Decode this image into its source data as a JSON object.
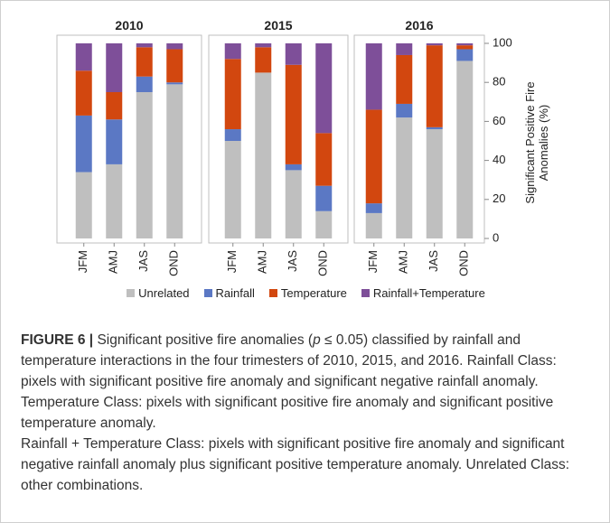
{
  "chart_data": {
    "type": "bar",
    "stacked": true,
    "ylabel": "Significant Positive Fire Anomalies (%)",
    "ylim": [
      0,
      100
    ],
    "yticks": [
      0,
      20,
      40,
      60,
      80,
      100
    ],
    "categories": [
      "JFM",
      "AMJ",
      "JAS",
      "OND"
    ],
    "legend": "bottom",
    "series": [
      {
        "name": "Unrelated",
        "color": "#bfbfbf"
      },
      {
        "name": "Rainfall",
        "color": "#5b78c4"
      },
      {
        "name": "Temperature",
        "color": "#d2470f"
      },
      {
        "name": "Rainfall+Temperature",
        "color": "#7e4f99"
      }
    ],
    "panels": [
      {
        "title": "2010",
        "series": [
          {
            "values": [
              34,
              38,
              75,
              79
            ]
          },
          {
            "values": [
              29,
              23,
              8,
              1
            ]
          },
          {
            "values": [
              23,
              14,
              15,
              17
            ]
          },
          {
            "values": [
              14,
              25,
              2,
              3
            ]
          }
        ]
      },
      {
        "title": "2015",
        "series": [
          {
            "values": [
              50,
              85,
              35,
              14
            ]
          },
          {
            "values": [
              6,
              0,
              3,
              13
            ]
          },
          {
            "values": [
              36,
              13,
              51,
              27
            ]
          },
          {
            "values": [
              8,
              2,
              11,
              46
            ]
          }
        ]
      },
      {
        "title": "2016",
        "series": [
          {
            "values": [
              13,
              62,
              56,
              91
            ]
          },
          {
            "values": [
              5,
              7,
              1,
              6
            ]
          },
          {
            "values": [
              48,
              25,
              42,
              2
            ]
          },
          {
            "values": [
              34,
              6,
              1,
              1
            ]
          }
        ]
      }
    ]
  },
  "caption": {
    "label": "FIGURE 6 |",
    "text_1": " Significant positive fire anomalies (",
    "p": "p",
    "text_2": " ≤ 0.05) classified by rainfall and temperature interactions in the four trimesters of 2010, 2015, and 2016. Rainfall Class: pixels with significant positive fire anomaly and significant negative rainfall anomaly. Temperature Class: pixels with significant positive fire anomaly and significant positive temperature anomaly.",
    "paragraph_2": "Rainfall + Temperature Class: pixels with significant positive fire anomaly and significant negative rainfall anomaly plus significant positive temperature anomaly. Unrelated Class: other combinations."
  }
}
